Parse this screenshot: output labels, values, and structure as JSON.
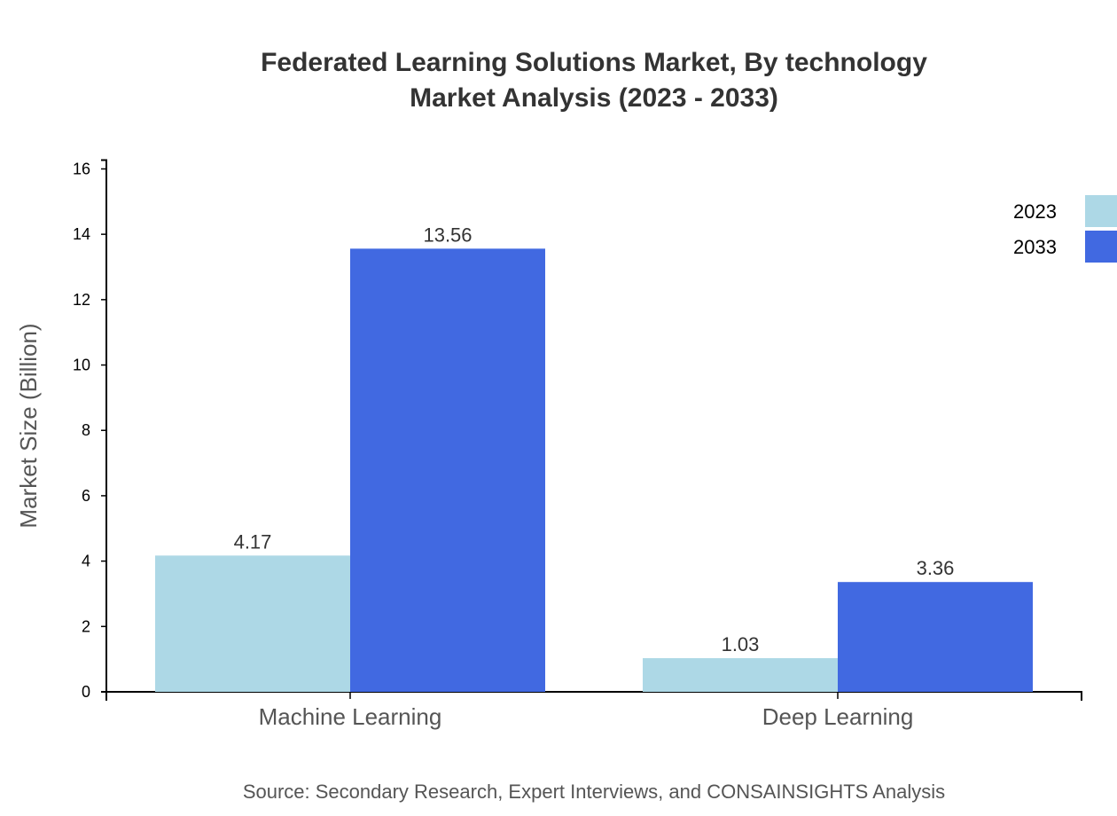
{
  "chart_data": {
    "type": "bar",
    "title": "Federated Learning Solutions Market, By technology",
    "subtitle": "Market Analysis (2023 - 2033)",
    "ylabel": "Market Size (Billion)",
    "xlabel": "",
    "categories": [
      "Machine Learning",
      "Deep Learning"
    ],
    "series": [
      {
        "name": "2023",
        "values": [
          4.17,
          1.03
        ],
        "color": "#add8e6"
      },
      {
        "name": "2033",
        "values": [
          13.56,
          3.36
        ],
        "color": "#4169e1"
      }
    ],
    "ylim": [
      0,
      16.27
    ],
    "yticks": [
      0,
      2,
      4,
      6,
      8,
      10,
      12,
      14,
      16
    ],
    "grid": false,
    "legend": "top-right",
    "source": "Source: Secondary Research, Expert Interviews, and CONSAINSIGHTS Analysis"
  }
}
